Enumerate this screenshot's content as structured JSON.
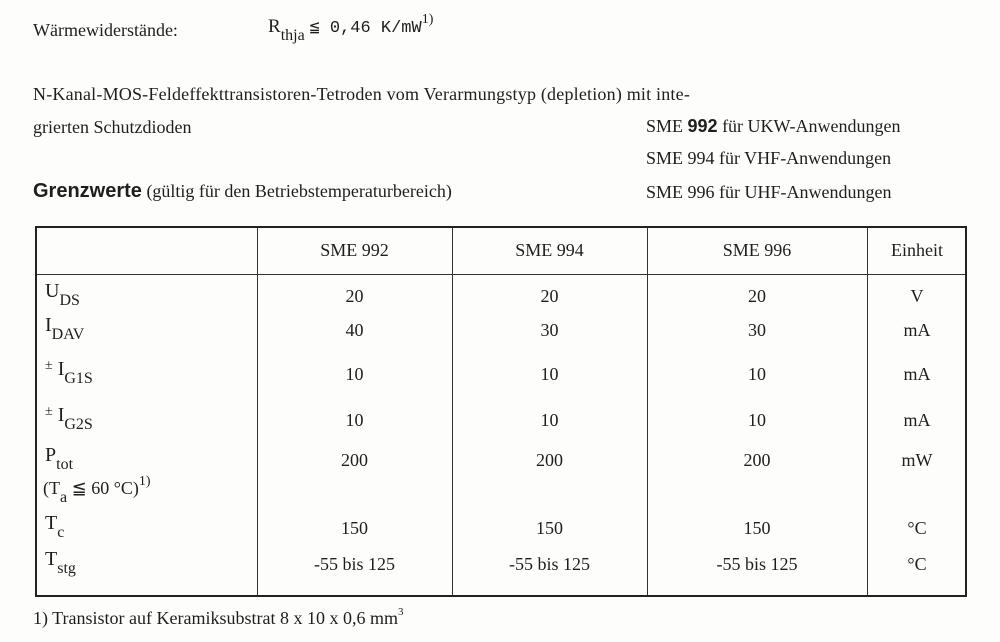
{
  "thermal": {
    "label": "Wärmewiderstände:",
    "symbol": "R",
    "symbol_sub": "thja",
    "relation": "≦ 0,46 K/mW",
    "footnote_ref": "1)"
  },
  "description": {
    "line1": "N-Kanal-MOS-Feldeffekttransistoren-Tetroden  vom  Verarmungstyp  (depletion)  mit  inte-",
    "line2": "grierten Schutzdioden"
  },
  "variants": [
    {
      "type": "SME",
      "number": "992",
      "use": "für UKW-Anwendungen"
    },
    {
      "type": "SME",
      "number": "994",
      "use": "für VHF-Anwendungen"
    },
    {
      "type": "SME",
      "number": "996",
      "use": "für UHF-Anwendungen"
    }
  ],
  "section": {
    "title": "Grenzwerte",
    "note": "(gültig für den Betriebstemperaturbereich)"
  },
  "table": {
    "headers": [
      "SME 992",
      "SME 994",
      "SME 996",
      "Einheit"
    ],
    "rows": [
      {
        "sym": "U",
        "sub": "DS",
        "prefix": "",
        "values": [
          "20",
          "20",
          "20"
        ],
        "unit": "V"
      },
      {
        "sym": "I",
        "sub": "DAV",
        "prefix": "",
        "values": [
          "40",
          "30",
          "30"
        ],
        "unit": "mA"
      },
      {
        "sym": "I",
        "sub": "G1S",
        "prefix": "±",
        "values": [
          "10",
          "10",
          "10"
        ],
        "unit": "mA"
      },
      {
        "sym": "I",
        "sub": "G2S",
        "prefix": "±",
        "values": [
          "10",
          "10",
          "10"
        ],
        "unit": "mA"
      },
      {
        "sym": "P",
        "sub": "tot",
        "prefix": "",
        "values": [
          "200",
          "200",
          "200"
        ],
        "unit": "mW",
        "cond": "(T",
        "cond_sub": "a",
        "cond_rest": "≦ 60 °C)",
        "cond_ref": "1)"
      },
      {
        "sym": "T",
        "sub": "c",
        "prefix": "",
        "values": [
          "150",
          "150",
          "150"
        ],
        "unit": "°C"
      },
      {
        "sym": "T",
        "sub": "stg",
        "prefix": "",
        "values": [
          "-55 bis 125",
          "-55 bis 125",
          "-55 bis 125"
        ],
        "unit": "°C"
      }
    ]
  },
  "footnote": {
    "text": "1) Transistor auf Keramiksubstrat 8 x 10 x 0,6 mm",
    "sup": "3"
  }
}
